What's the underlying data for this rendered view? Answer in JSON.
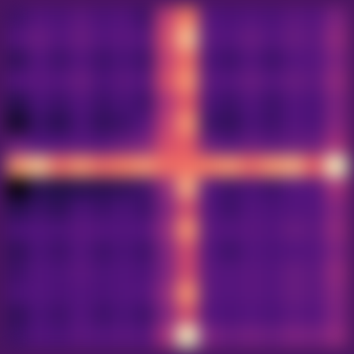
{
  "chart_data": {
    "type": "heatmap",
    "tick_labels": false,
    "cells": [
      [
        0.25,
        0.3,
        0.28,
        0.32,
        0.28,
        0.3,
        0.25,
        0.55,
        0.75,
        0.3,
        0.28,
        0.3,
        0.28,
        0.32,
        0.3,
        0.4
      ],
      [
        0.3,
        0.35,
        0.3,
        0.35,
        0.3,
        0.32,
        0.3,
        0.6,
        0.9,
        0.32,
        0.3,
        0.35,
        0.3,
        0.35,
        0.32,
        0.45
      ],
      [
        0.22,
        0.3,
        0.25,
        0.3,
        0.25,
        0.28,
        0.25,
        0.55,
        0.7,
        0.28,
        0.25,
        0.3,
        0.25,
        0.3,
        0.3,
        0.4
      ],
      [
        0.3,
        0.32,
        0.3,
        0.35,
        0.28,
        0.32,
        0.3,
        0.6,
        0.8,
        0.32,
        0.3,
        0.35,
        0.3,
        0.35,
        0.32,
        0.45
      ],
      [
        0.2,
        0.28,
        0.25,
        0.3,
        0.25,
        0.28,
        0.25,
        0.5,
        0.65,
        0.28,
        0.25,
        0.3,
        0.25,
        0.3,
        0.28,
        0.4
      ],
      [
        0.12,
        0.25,
        0.2,
        0.28,
        0.22,
        0.25,
        0.3,
        0.55,
        0.8,
        0.25,
        0.22,
        0.28,
        0.25,
        0.3,
        0.28,
        0.42
      ],
      [
        0.35,
        0.3,
        0.3,
        0.32,
        0.3,
        0.35,
        0.4,
        0.6,
        0.65,
        0.35,
        0.3,
        0.35,
        0.32,
        0.35,
        0.35,
        0.5
      ],
      [
        0.8,
        0.9,
        0.7,
        0.8,
        0.7,
        0.75,
        0.8,
        0.7,
        0.7,
        0.75,
        0.8,
        0.7,
        0.8,
        0.85,
        0.65,
        1.0
      ],
      [
        0.05,
        0.2,
        0.18,
        0.2,
        0.2,
        0.22,
        0.25,
        0.45,
        0.85,
        0.3,
        0.25,
        0.28,
        0.25,
        0.3,
        0.3,
        0.5
      ],
      [
        0.2,
        0.25,
        0.22,
        0.28,
        0.25,
        0.28,
        0.25,
        0.4,
        0.6,
        0.3,
        0.25,
        0.3,
        0.28,
        0.3,
        0.3,
        0.42
      ],
      [
        0.28,
        0.3,
        0.28,
        0.32,
        0.3,
        0.3,
        0.3,
        0.45,
        0.8,
        0.32,
        0.3,
        0.32,
        0.3,
        0.35,
        0.32,
        0.45
      ],
      [
        0.22,
        0.28,
        0.25,
        0.3,
        0.25,
        0.28,
        0.25,
        0.4,
        0.6,
        0.3,
        0.25,
        0.3,
        0.28,
        0.3,
        0.3,
        0.4
      ],
      [
        0.25,
        0.3,
        0.28,
        0.32,
        0.28,
        0.3,
        0.28,
        0.4,
        0.6,
        0.32,
        0.3,
        0.32,
        0.3,
        0.35,
        0.32,
        0.45
      ],
      [
        0.28,
        0.3,
        0.28,
        0.3,
        0.28,
        0.3,
        0.3,
        0.45,
        0.8,
        0.32,
        0.3,
        0.32,
        0.3,
        0.35,
        0.32,
        0.42
      ],
      [
        0.22,
        0.28,
        0.25,
        0.3,
        0.25,
        0.28,
        0.25,
        0.4,
        0.6,
        0.3,
        0.28,
        0.3,
        0.28,
        0.32,
        0.3,
        0.4
      ],
      [
        0.25,
        0.3,
        0.28,
        0.32,
        0.3,
        0.32,
        0.3,
        0.5,
        1.0,
        0.4,
        0.35,
        0.38,
        0.35,
        0.4,
        0.38,
        0.45
      ]
    ]
  }
}
